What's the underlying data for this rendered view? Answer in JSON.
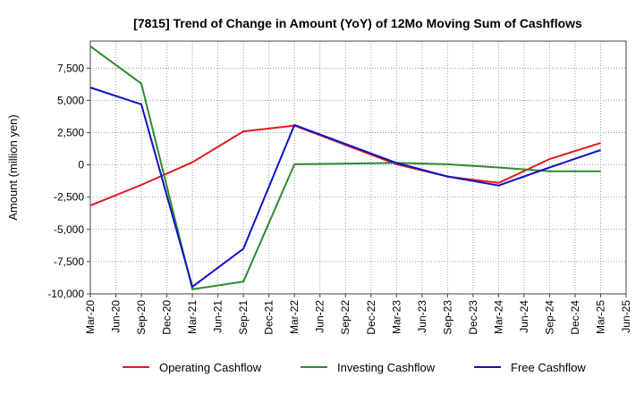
{
  "chart_data": {
    "type": "line",
    "title": "[7815]  Trend of Change in Amount (YoY) of 12Mo Moving Sum of Cashflows",
    "xlabel": "",
    "ylabel": "Amount (million yen)",
    "ylim": [
      -10000,
      9600
    ],
    "yticks": [
      -10000,
      -7500,
      -5000,
      -2500,
      0,
      2500,
      5000,
      7500
    ],
    "ytick_labels": [
      "-10,000",
      "-7,500",
      "-5,000",
      "-2,500",
      "0",
      "2,500",
      "5,000",
      "7,500"
    ],
    "categories": [
      "Mar-20",
      "Jun-20",
      "Sep-20",
      "Dec-20",
      "Mar-21",
      "Jun-21",
      "Sep-21",
      "Dec-21",
      "Mar-22",
      "Jun-22",
      "Sep-22",
      "Dec-22",
      "Mar-23",
      "Jun-23",
      "Sep-23",
      "Dec-23",
      "Mar-24",
      "Jun-24",
      "Sep-24",
      "Dec-24",
      "Mar-25",
      "Jun-25"
    ],
    "grid": true,
    "legend_position": "bottom",
    "series": [
      {
        "name": "Operating Cashflow",
        "color": "#e41a1c",
        "values": [
          -3150,
          null,
          -1550,
          null,
          200,
          null,
          2600,
          null,
          3050,
          null,
          null,
          null,
          50,
          null,
          -900,
          null,
          -1400,
          null,
          450,
          null,
          1700,
          null
        ]
      },
      {
        "name": "Investing Cashflow",
        "color": "#2e8b2e",
        "values": [
          9200,
          null,
          6300,
          null,
          -9650,
          null,
          -9050,
          null,
          50,
          null,
          null,
          null,
          150,
          null,
          50,
          null,
          -200,
          null,
          -500,
          null,
          -500,
          null
        ]
      },
      {
        "name": "Free Cashflow",
        "color": "#1010c8",
        "values": [
          6000,
          null,
          4700,
          null,
          -9450,
          null,
          -6500,
          null,
          3100,
          null,
          null,
          null,
          150,
          null,
          -900,
          null,
          -1600,
          null,
          -200,
          null,
          1150,
          null
        ]
      }
    ]
  }
}
